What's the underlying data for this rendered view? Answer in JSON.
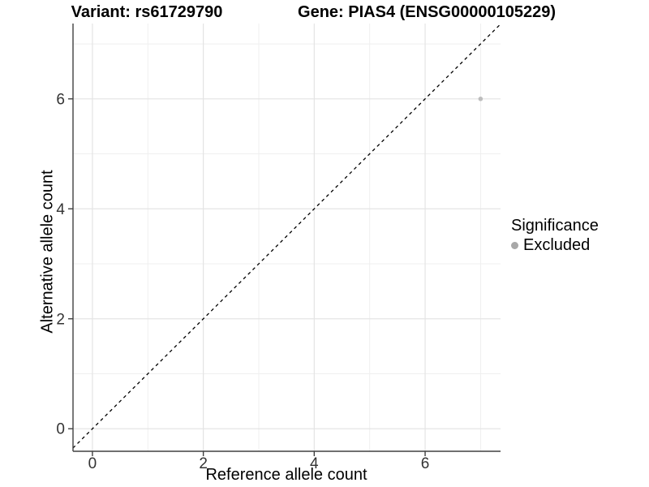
{
  "header": {
    "title_left": "Variant: rs61729790",
    "title_right": "Gene: PIAS4 (ENSG00000105229)"
  },
  "axes": {
    "x_title": "Reference allele count",
    "y_title": "Alternative allele count"
  },
  "legend": {
    "title": "Significance",
    "items": [
      {
        "label": "Excluded",
        "color": "#a8a8a8"
      }
    ]
  },
  "chart_data": {
    "type": "scatter",
    "title_left": "Variant: rs61729790",
    "title_right": "Gene: PIAS4 (ENSG00000105229)",
    "xlabel": "Reference allele count",
    "ylabel": "Alternative allele count",
    "xlim": [
      -0.35,
      7.36
    ],
    "ylim": [
      -0.41,
      7.37
    ],
    "x_major_ticks": [
      0,
      2,
      4,
      6
    ],
    "y_major_ticks": [
      0,
      2,
      4,
      6
    ],
    "x_minor_ticks": [
      1,
      3,
      5,
      7
    ],
    "y_minor_ticks": [
      1,
      3,
      5,
      7
    ],
    "grid": "major+minor",
    "legend_position": "right",
    "series": [
      {
        "name": "Excluded",
        "color": "#bdbdbd",
        "points": [
          {
            "x": 7,
            "y": 6
          }
        ]
      }
    ],
    "reference_line": {
      "slope": 1,
      "intercept": 0,
      "style": "dashed",
      "color": "#000000"
    }
  },
  "colors": {
    "background": "#ffffff",
    "grid_major": "#e4e4e4",
    "grid_minor": "#efefef",
    "axis_line": "#404040",
    "tick_mark": "#404040",
    "tick_label": "#333333"
  }
}
